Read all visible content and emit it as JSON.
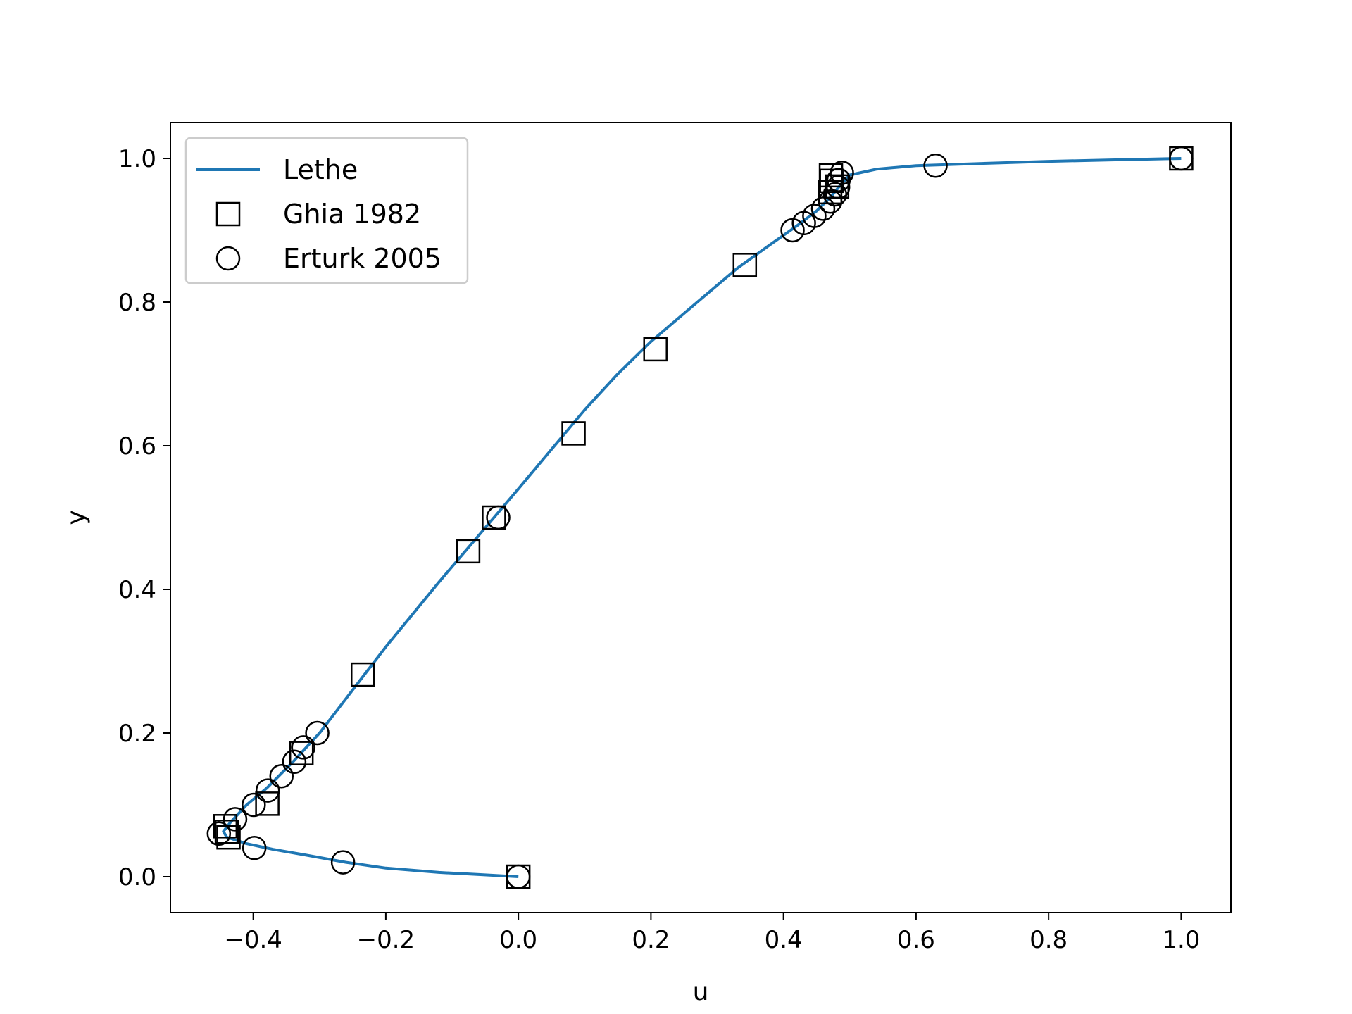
{
  "chart_data": {
    "type": "line",
    "xlabel": "u",
    "ylabel": "y",
    "xlim": [
      -0.525,
      1.075
    ],
    "ylim": [
      -0.05,
      1.05
    ],
    "x_ticks": [
      -0.4,
      -0.2,
      0.0,
      0.2,
      0.4,
      0.6,
      0.8,
      1.0
    ],
    "y_ticks": [
      0.0,
      0.2,
      0.4,
      0.6,
      0.8,
      1.0
    ],
    "x_tick_labels": [
      "−0.4",
      "−0.2",
      "0.0",
      "0.2",
      "0.4",
      "0.6",
      "0.8",
      "1.0"
    ],
    "y_tick_labels": [
      "0.0",
      "0.2",
      "0.4",
      "0.6",
      "0.8",
      "1.0"
    ],
    "legend_position": "upper-left",
    "grid": false,
    "series": [
      {
        "name": "Lethe",
        "kind": "line",
        "color": "#1f77b4",
        "points": [
          [
            0.0,
            0.0
          ],
          [
            -0.06,
            0.003
          ],
          [
            -0.12,
            0.006
          ],
          [
            -0.2,
            0.012
          ],
          [
            -0.26,
            0.02
          ],
          [
            -0.32,
            0.03
          ],
          [
            -0.37,
            0.038
          ],
          [
            -0.41,
            0.046
          ],
          [
            -0.44,
            0.055
          ],
          [
            -0.445,
            0.063
          ],
          [
            -0.435,
            0.075
          ],
          [
            -0.41,
            0.1
          ],
          [
            -0.38,
            0.123
          ],
          [
            -0.34,
            0.16
          ],
          [
            -0.3,
            0.2
          ],
          [
            -0.25,
            0.26
          ],
          [
            -0.2,
            0.32
          ],
          [
            -0.12,
            0.41
          ],
          [
            -0.06,
            0.475
          ],
          [
            0.0,
            0.54
          ],
          [
            0.05,
            0.595
          ],
          [
            0.1,
            0.65
          ],
          [
            0.15,
            0.7
          ],
          [
            0.2,
            0.745
          ],
          [
            0.27,
            0.8
          ],
          [
            0.33,
            0.847
          ],
          [
            0.38,
            0.88
          ],
          [
            0.42,
            0.906
          ],
          [
            0.45,
            0.927
          ],
          [
            0.47,
            0.945
          ],
          [
            0.485,
            0.962
          ],
          [
            0.5,
            0.977
          ],
          [
            0.54,
            0.985
          ],
          [
            0.6,
            0.99
          ],
          [
            0.7,
            0.993
          ],
          [
            0.8,
            0.996
          ],
          [
            0.9,
            0.998
          ],
          [
            1.0,
            1.0
          ]
        ]
      },
      {
        "name": "Ghia 1982",
        "kind": "marker",
        "marker": "square",
        "points": [
          [
            1.0,
            1.0
          ],
          [
            0.4716,
            0.9766
          ],
          [
            0.4723,
            0.9688
          ],
          [
            0.4809,
            0.9609
          ],
          [
            0.4704,
            0.9531
          ],
          [
            0.3417,
            0.8516
          ],
          [
            0.2067,
            0.7344
          ],
          [
            0.0833,
            0.6172
          ],
          [
            -0.0369,
            0.5
          ],
          [
            -0.0757,
            0.4531
          ],
          [
            -0.2347,
            0.2813
          ],
          [
            -0.3272,
            0.1719
          ],
          [
            -0.3788,
            0.1016
          ],
          [
            -0.4423,
            0.0703
          ],
          [
            -0.4399,
            0.0625
          ],
          [
            -0.4373,
            0.0547
          ],
          [
            0.0,
            0.0
          ]
        ]
      },
      {
        "name": "Erturk 2005",
        "kind": "marker",
        "marker": "circle",
        "points": [
          [
            1.0,
            1.0
          ],
          [
            0.6294,
            0.99
          ],
          [
            0.4881,
            0.98
          ],
          [
            0.4832,
            0.97
          ],
          [
            0.4824,
            0.96
          ],
          [
            0.4777,
            0.95
          ],
          [
            0.4705,
            0.94
          ],
          [
            0.4598,
            0.93
          ],
          [
            0.4465,
            0.92
          ],
          [
            0.4308,
            0.91
          ],
          [
            0.4137,
            0.9
          ],
          [
            -0.0304,
            0.5
          ],
          [
            -0.3034,
            0.2
          ],
          [
            -0.3244,
            0.18
          ],
          [
            -0.3381,
            0.16
          ],
          [
            -0.3574,
            0.14
          ],
          [
            -0.3782,
            0.12
          ],
          [
            -0.3993,
            0.1
          ],
          [
            -0.4273,
            0.08
          ],
          [
            -0.4519,
            0.06
          ],
          [
            -0.3984,
            0.04
          ],
          [
            -0.2646,
            0.02
          ],
          [
            0.0,
            0.0
          ]
        ]
      }
    ]
  }
}
